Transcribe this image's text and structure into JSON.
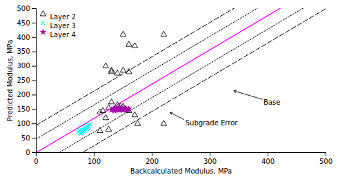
{
  "chart_data": {
    "type": "scatter",
    "xlabel": "Backcalculated Modulus, MPa",
    "ylabel": "Predicted Modulus, MPa",
    "xlim": [
      0,
      500
    ],
    "ylim": [
      0,
      500
    ],
    "xticks": [
      0,
      100,
      200,
      300,
      400,
      500
    ],
    "yticks": [
      0,
      50,
      100,
      150,
      200,
      250,
      300,
      350,
      400,
      450,
      500
    ],
    "grid": false,
    "legend": "upper left",
    "series": [
      {
        "name": "Layer 2",
        "color": "black",
        "marker": "triangle-open",
        "x": [
          110,
          120,
          130,
          140,
          150,
          160,
          115,
          125,
          135,
          145,
          155,
          130,
          140,
          150,
          160,
          120,
          130,
          150,
          160,
          170,
          220,
          170,
          110,
          125,
          175,
          220
        ],
        "y": [
          140,
          120,
          175,
          165,
          160,
          145,
          145,
          155,
          150,
          160,
          150,
          280,
          275,
          285,
          280,
          300,
          285,
          410,
          375,
          370,
          410,
          130,
          75,
          80,
          100,
          100
        ]
      },
      {
        "name": "Layer 3",
        "color": "#00FFFF",
        "marker": "x",
        "x": [
          72,
          74,
          76,
          78,
          80,
          82,
          84,
          86,
          88,
          90,
          92,
          94,
          78,
          80,
          82,
          84,
          86,
          88,
          90,
          75,
          77,
          79,
          81,
          83,
          85,
          87,
          89,
          91
        ],
        "y": [
          72,
          75,
          78,
          80,
          82,
          85,
          88,
          90,
          92,
          95,
          98,
          100,
          68,
          70,
          73,
          76,
          79,
          82,
          85,
          65,
          68,
          71,
          74,
          77,
          80,
          83,
          86,
          89
        ]
      },
      {
        "name": "Layer 4",
        "color": "#AA00AA",
        "marker": "star",
        "x": [
          130,
          135,
          140,
          145,
          150,
          155,
          160,
          135,
          140,
          145,
          150,
          155,
          133,
          138,
          143,
          148,
          153,
          158
        ],
        "y": [
          148,
          150,
          152,
          150,
          148,
          150,
          152,
          145,
          148,
          152,
          155,
          148,
          150,
          152,
          148,
          150,
          152,
          149
        ]
      }
    ],
    "lines": [
      {
        "slope": 1.19,
        "intercept": 0,
        "color": "#FF00FF",
        "line_style": "solid"
      },
      {
        "slope": 1.19,
        "intercept": 95,
        "color": "black",
        "line_style": "dashed"
      },
      {
        "slope": 1.19,
        "intercept": -95,
        "color": "black",
        "line_style": "dashed"
      },
      {
        "slope": 1.19,
        "intercept": 47,
        "color": "black",
        "line_style": "dotted"
      },
      {
        "slope": 1.19,
        "intercept": -47,
        "color": "black",
        "line_style": "dotted"
      }
    ],
    "annotations": [
      {
        "text": "Base",
        "xy": [
          340,
          215
        ],
        "xytext": [
          390,
          185
        ]
      },
      {
        "text": "Subgrade Error",
        "xy": [
          230,
          140
        ],
        "xytext": [
          255,
          115
        ]
      }
    ]
  }
}
